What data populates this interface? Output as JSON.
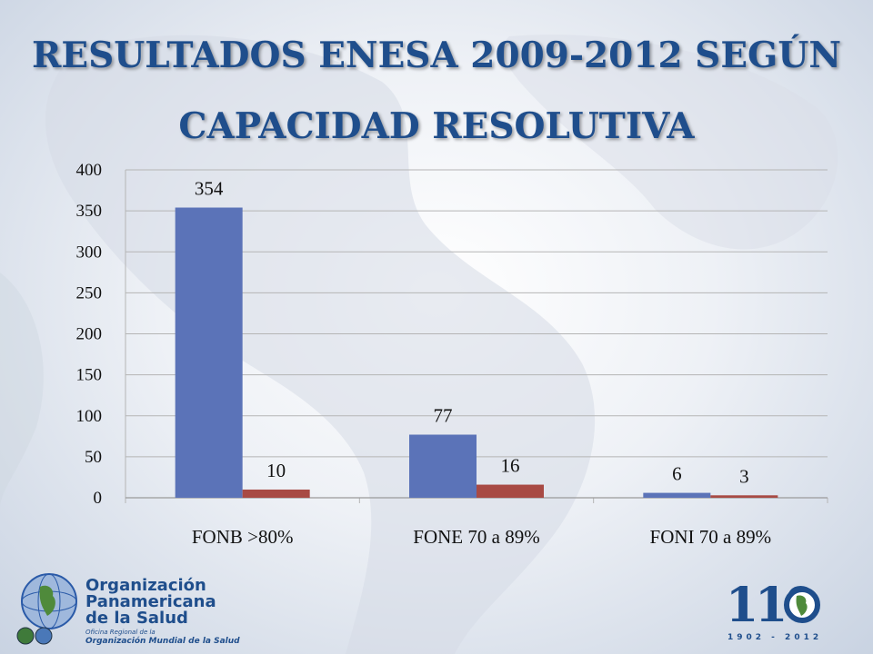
{
  "title": {
    "line1": "RESULTADOS ENESA 2009-2012 SEGÚN",
    "line2": "CAPACIDAD RESOLUTIVA"
  },
  "colors": {
    "series1": "#5b73b8",
    "series2": "#a84a44",
    "title": "#1f4e8c",
    "grid": "#b5b5b5"
  },
  "chart_data": {
    "type": "bar",
    "categories": [
      "FONB >80%",
      "FONE 70 a 89%",
      "FONI 70 a 89%"
    ],
    "series": [
      {
        "values": [
          354,
          77,
          6
        ],
        "labels": [
          "354",
          "77",
          "6"
        ]
      },
      {
        "values": [
          10,
          16,
          3
        ],
        "labels": [
          "10",
          "16",
          "3"
        ]
      }
    ],
    "ylim": [
      0,
      400
    ],
    "yticks": [
      0,
      50,
      100,
      150,
      200,
      250,
      300,
      350,
      400
    ],
    "grid": true,
    "legend": "none"
  },
  "logos": {
    "paho": {
      "line1": "Organización",
      "line2": "Panamericana",
      "line3": "de la Salud",
      "sub1": "Oficina Regional de la",
      "sub2": "Organización Mundial de la Salud"
    },
    "anniversary": {
      "number": "110",
      "years": "1902 - 2012"
    }
  }
}
